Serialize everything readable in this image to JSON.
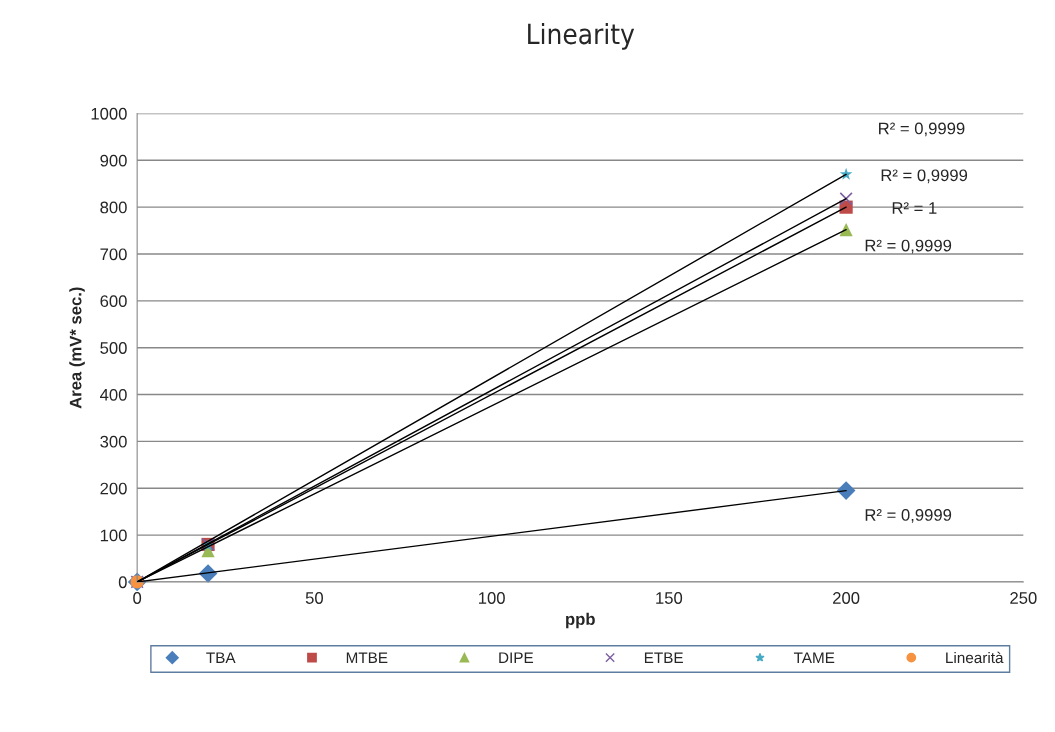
{
  "chart_data": {
    "type": "scatter",
    "title": "Linearity",
    "xlabel": "ppb",
    "ylabel": "Area (mV* sec.)",
    "xlim": [
      0,
      250
    ],
    "xticks": [
      0,
      50,
      100,
      150,
      200,
      250
    ],
    "ylim": [
      0,
      1000
    ],
    "yticks": [
      0,
      100,
      200,
      300,
      400,
      500,
      600,
      700,
      800,
      900,
      1000
    ],
    "grid": "y",
    "legend": "bottom",
    "series": [
      {
        "type": "line",
        "color": "#000000",
        "x": [
          0,
          200
        ],
        "values": [
          0,
          195
        ],
        "marker": "none",
        "line_style": "solid"
      },
      {
        "type": "line",
        "color": "#000000",
        "x": [
          0,
          200
        ],
        "values": [
          0,
          800
        ],
        "marker": "none",
        "line_style": "solid"
      },
      {
        "type": "line",
        "color": "#000000",
        "x": [
          0,
          200
        ],
        "values": [
          0,
          752
        ],
        "marker": "none",
        "line_style": "solid"
      },
      {
        "type": "line",
        "color": "#000000",
        "x": [
          0,
          200
        ],
        "values": [
          0,
          818
        ],
        "marker": "none",
        "line_style": "solid"
      },
      {
        "type": "line",
        "color": "#000000",
        "x": [
          0,
          200
        ],
        "values": [
          0,
          870
        ],
        "marker": "none",
        "line_style": "solid"
      },
      {
        "name": "TBA",
        "color": "#4a7ebb",
        "x": [
          0,
          20,
          200
        ],
        "values": [
          0,
          18,
          195
        ],
        "marker": "diamond"
      },
      {
        "name": "MTBE",
        "color": "#be4b48",
        "x": [
          20,
          200
        ],
        "values": [
          80,
          800
        ],
        "marker": "square"
      },
      {
        "name": "DIPE",
        "color": "#98b954",
        "x": [
          20,
          200
        ],
        "values": [
          67,
          752
        ],
        "marker": "triangle"
      },
      {
        "name": "ETBE",
        "color": "#7d60a0",
        "x": [
          0,
          20,
          200
        ],
        "values": [
          0,
          80,
          818
        ],
        "marker": "cross"
      },
      {
        "name": "TAME",
        "color": "#46aac5",
        "x": [
          20,
          200
        ],
        "values": [
          78,
          870
        ],
        "marker": "star"
      },
      {
        "name": "Linearità",
        "color": "#f69240",
        "x": [
          0
        ],
        "values": [
          0
        ],
        "marker": "circle"
      }
    ],
    "annotations": [
      "R² = 0,9999",
      "R² = 0,9999",
      "R² = 1",
      "R² = 0,9999",
      "R² = 0,9999"
    ]
  }
}
